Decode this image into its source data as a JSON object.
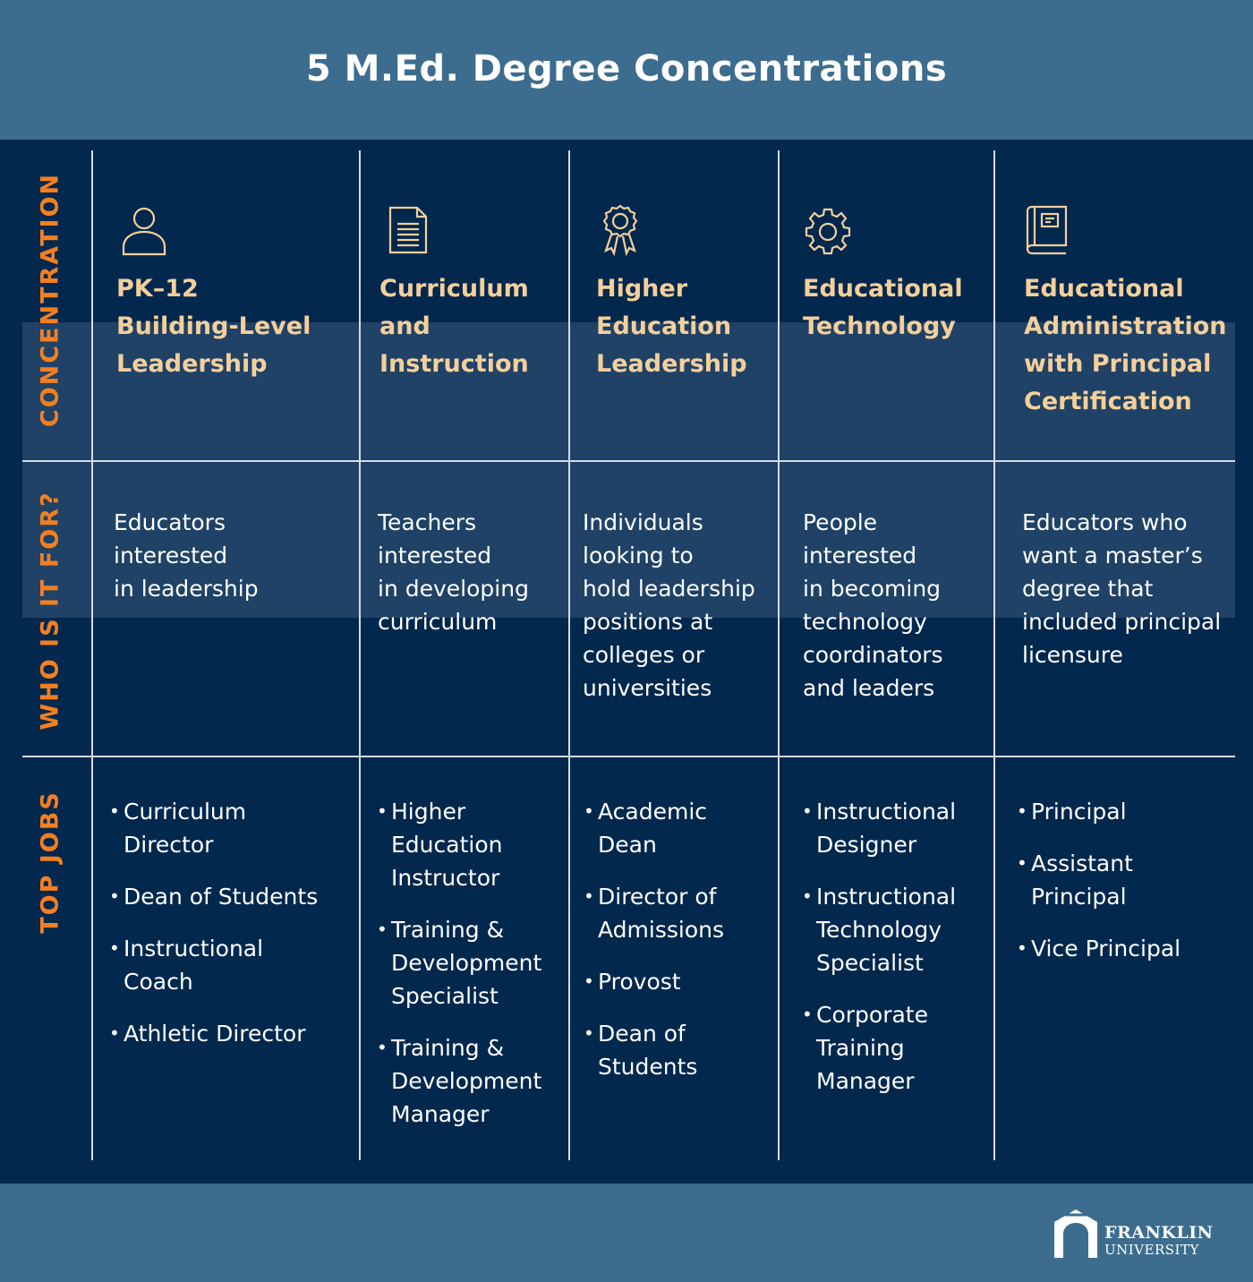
{
  "title": "5 M.Ed. Degree Concentrations",
  "row_labels": {
    "concentration": "CONCENTRATION",
    "who": "WHO IS IT FOR?",
    "jobs": "TOP JOBS"
  },
  "columns": [
    {
      "icon": "person-icon",
      "title_lines": [
        "PK–12",
        "Building-Level",
        "Leadership"
      ],
      "who_lines": [
        "Educators",
        "interested",
        "in leadership"
      ],
      "jobs": [
        [
          "Curriculum",
          "Director"
        ],
        [
          "Dean of Students"
        ],
        [
          "Instructional",
          "Coach"
        ],
        [
          "Athletic Director"
        ]
      ]
    },
    {
      "icon": "document-icon",
      "title_lines": [
        "Curriculum",
        "and",
        "Instruction"
      ],
      "who_lines": [
        "Teachers",
        "interested",
        "in developing",
        "curriculum"
      ],
      "jobs": [
        [
          "Higher",
          "Education",
          "Instructor"
        ],
        [
          "Training &",
          "Development",
          "Specialist"
        ],
        [
          "Training &",
          "Development",
          "Manager"
        ]
      ]
    },
    {
      "icon": "award-ribbon-icon",
      "title_lines": [
        "Higher",
        "Education",
        "Leadership"
      ],
      "who_lines": [
        "Individuals",
        "looking to",
        "hold leadership",
        "positions at",
        "colleges or",
        "universities"
      ],
      "jobs": [
        [
          "Academic",
          "Dean"
        ],
        [
          "Director of",
          "Admissions"
        ],
        [
          "Provost"
        ],
        [
          "Dean of",
          "Students"
        ]
      ]
    },
    {
      "icon": "gear-icon",
      "title_lines": [
        "Educational",
        "Technology"
      ],
      "who_lines": [
        "People",
        "interested",
        "in becoming",
        "technology",
        "coordinators",
        "and leaders"
      ],
      "jobs": [
        [
          "Instructional",
          "Designer"
        ],
        [
          "Instructional",
          "Technology",
          "Specialist"
        ],
        [
          "Corporate",
          "Training",
          "Manager"
        ]
      ]
    },
    {
      "icon": "book-icon",
      "title_lines": [
        "Educational",
        "Administration",
        "with Principal",
        "Certification"
      ],
      "who_lines": [
        "Educators who",
        "want a master’s",
        "degree that",
        "included principal",
        "licensure"
      ],
      "jobs": [
        [
          "Principal"
        ],
        [
          "Assistant",
          "Principal"
        ],
        [
          "Vice Principal"
        ]
      ]
    }
  ],
  "footer": {
    "logo_icon": "franklin-arch-icon",
    "logo_line1": "FRANKLIN",
    "logo_line2": "UNIVERSITY"
  },
  "colors": {
    "header_bg": "#3c6d8f",
    "main_bg": "#02284e",
    "band_bg": "#1f4266",
    "label_orange": "#f47f20",
    "title_peach": "#f5cf9b",
    "divider": "#d6dce4"
  }
}
